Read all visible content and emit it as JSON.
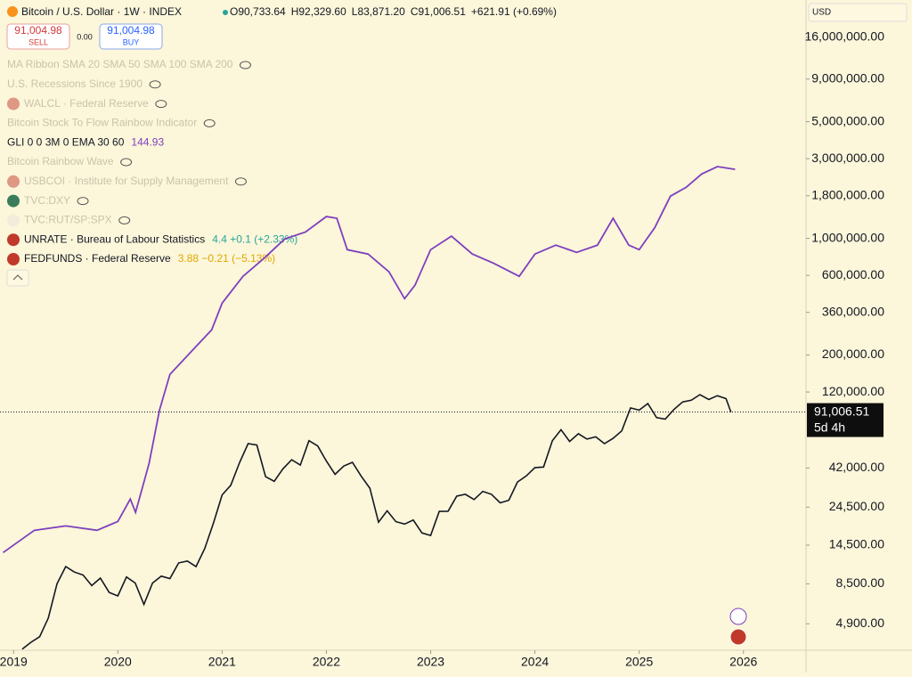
{
  "toolbar": {
    "symbol": "Bitcoin / U.S. Dollar · 1W · INDEX",
    "ohlc": [
      "O90,733.64",
      "H92,329.60",
      "L83,871.20",
      "C91,006.51",
      "+621.91 (+0.69%)"
    ],
    "sell_price": "91,004.98",
    "sell": "SELL",
    "spread": "0.00",
    "buy_price": "91,004.98",
    "buy": "BUY",
    "currency": "USD"
  },
  "indicators": [
    {
      "name": "MA Ribbon SMA 20 SMA 50 SMA 100 SMA 200"
    },
    {
      "name": "U.S. Recessions Since 1900"
    },
    {
      "name": "WALCL · Federal Reserve"
    },
    {
      "name": "Bitcoin Stock To Flow Rainbow Indicator"
    },
    {
      "name": "GLI 0 0 3M 0 EMA 30 60",
      "value": "144.93"
    },
    {
      "name": "Bitcoin Rainbow Wave"
    },
    {
      "name": "USBCOI · Institute for Supply Management"
    },
    {
      "name": "TVC:DXY"
    },
    {
      "name": "TVC:RUT/SP:SPX"
    },
    {
      "name": "UNRATE · Bureau of Labour Statistics",
      "value": "4.4 +0.1 (+2.33%)"
    },
    {
      "name": "FEDFUNDS · Federal Reserve",
      "value": "3.88 −0.21 (−5.13%)"
    }
  ],
  "chart_data": {
    "type": "line",
    "log_scale": true,
    "grid": false,
    "xlim": [
      2018.87,
      2026.6
    ],
    "xticks": [
      2019,
      2020,
      2021,
      2022,
      2023,
      2024,
      2025,
      2026
    ],
    "ylim": [
      3400,
      26800000
    ],
    "yticks": [
      {
        "value": 4900,
        "label": "4,900.00"
      },
      {
        "value": 8500,
        "label": "8,500.00"
      },
      {
        "value": 14500,
        "label": "14,500.00"
      },
      {
        "value": 24500,
        "label": "24,500.00"
      },
      {
        "value": 42000,
        "label": "42,000.00"
      },
      {
        "value": 120000,
        "label": "120,000.00"
      },
      {
        "value": 200000,
        "label": "200,000.00"
      },
      {
        "value": 360000,
        "label": "360,000.00"
      },
      {
        "value": 600000,
        "label": "600,000.00"
      },
      {
        "value": 1000000,
        "label": "1,000,000.00"
      },
      {
        "value": 1800000,
        "label": "1,800,000.00"
      },
      {
        "value": 3000000,
        "label": "3,000,000.00"
      },
      {
        "value": 5000000,
        "label": "5,000,000.00"
      },
      {
        "value": 9000000,
        "label": "9,000,000.00"
      },
      {
        "value": 16000000,
        "label": "16,000,000.00"
      }
    ],
    "last_price": {
      "value": 91006.51,
      "label": "91,006.51",
      "countdown": "5d 4h"
    },
    "series": [
      {
        "name": "Bitcoin / U.S. Dollar",
        "color": "#131722",
        "x": [
          2019.083,
          2019.167,
          2019.25,
          2019.333,
          2019.417,
          2019.5,
          2019.583,
          2019.667,
          2019.75,
          2019.833,
          2019.917,
          2020.0,
          2020.083,
          2020.167,
          2020.25,
          2020.333,
          2020.417,
          2020.5,
          2020.583,
          2020.667,
          2020.75,
          2020.833,
          2020.917,
          2021.0,
          2021.083,
          2021.167,
          2021.25,
          2021.333,
          2021.417,
          2021.5,
          2021.583,
          2021.667,
          2021.75,
          2021.833,
          2021.917,
          2022.0,
          2022.083,
          2022.167,
          2022.25,
          2022.333,
          2022.417,
          2022.5,
          2022.583,
          2022.667,
          2022.75,
          2022.833,
          2022.917,
          2023.0,
          2023.083,
          2023.167,
          2023.25,
          2023.333,
          2023.417,
          2023.5,
          2023.583,
          2023.667,
          2023.75,
          2023.833,
          2023.917,
          2024.0,
          2024.083,
          2024.167,
          2024.25,
          2024.333,
          2024.417,
          2024.5,
          2024.583,
          2024.667,
          2024.75,
          2024.833,
          2024.917,
          2025.0,
          2025.083,
          2025.167,
          2025.25,
          2025.333,
          2025.417,
          2025.5,
          2025.583,
          2025.667,
          2025.75,
          2025.833,
          2025.88
        ],
        "values": [
          3450,
          3800,
          4100,
          5300,
          8500,
          10800,
          10000,
          9600,
          8300,
          9200,
          7550,
          7200,
          9350,
          8600,
          6400,
          8600,
          9450,
          9150,
          11350,
          11650,
          10780,
          13800,
          19700,
          29000,
          33100,
          45200,
          58900,
          57700,
          37300,
          35000,
          41500,
          47100,
          43800,
          61300,
          57000,
          46300,
          38500,
          43200,
          45500,
          37700,
          31800,
          19900,
          23300,
          20050,
          19400,
          20500,
          17150,
          16550,
          23100,
          23150,
          28500,
          29250,
          27200,
          30450,
          29250,
          26000,
          26950,
          34650,
          37700,
          42300,
          42600,
          61200,
          71300,
          60600,
          67500,
          62700,
          64600,
          58900,
          63300,
          70200,
          96400,
          93400,
          102400,
          84300,
          82500,
          94200,
          104600,
          107100,
          115700,
          108200,
          114000,
          109500,
          91000
        ]
      },
      {
        "name": "GLI 0 0 3M 0 EMA 30 60",
        "color": "#7e3fbf",
        "x": [
          2018.9,
          2019.2,
          2019.5,
          2019.8,
          2020.0,
          2020.12,
          2020.17,
          2020.3,
          2020.4,
          2020.5,
          2020.7,
          2020.9,
          2021.0,
          2021.2,
          2021.4,
          2021.6,
          2021.8,
          2022.0,
          2022.1,
          2022.2,
          2022.4,
          2022.6,
          2022.75,
          2022.85,
          2023.0,
          2023.2,
          2023.4,
          2023.6,
          2023.85,
          2024.0,
          2024.2,
          2024.4,
          2024.6,
          2024.75,
          2024.9,
          2025.0,
          2025.15,
          2025.3,
          2025.45,
          2025.6,
          2025.75,
          2025.92
        ],
        "values": [
          13100,
          17800,
          18900,
          17800,
          20100,
          27400,
          22800,
          44800,
          93600,
          153000,
          208000,
          283000,
          409000,
          592000,
          757000,
          991000,
          1090000,
          1350000,
          1320000,
          855000,
          805000,
          630000,
          435000,
          524000,
          855000,
          1030000,
          805000,
          711000,
          592000,
          805000,
          910000,
          824000,
          910000,
          1320000,
          910000,
          855000,
          1160000,
          1790000,
          2020000,
          2430000,
          2690000,
          2590000
        ]
      }
    ]
  }
}
